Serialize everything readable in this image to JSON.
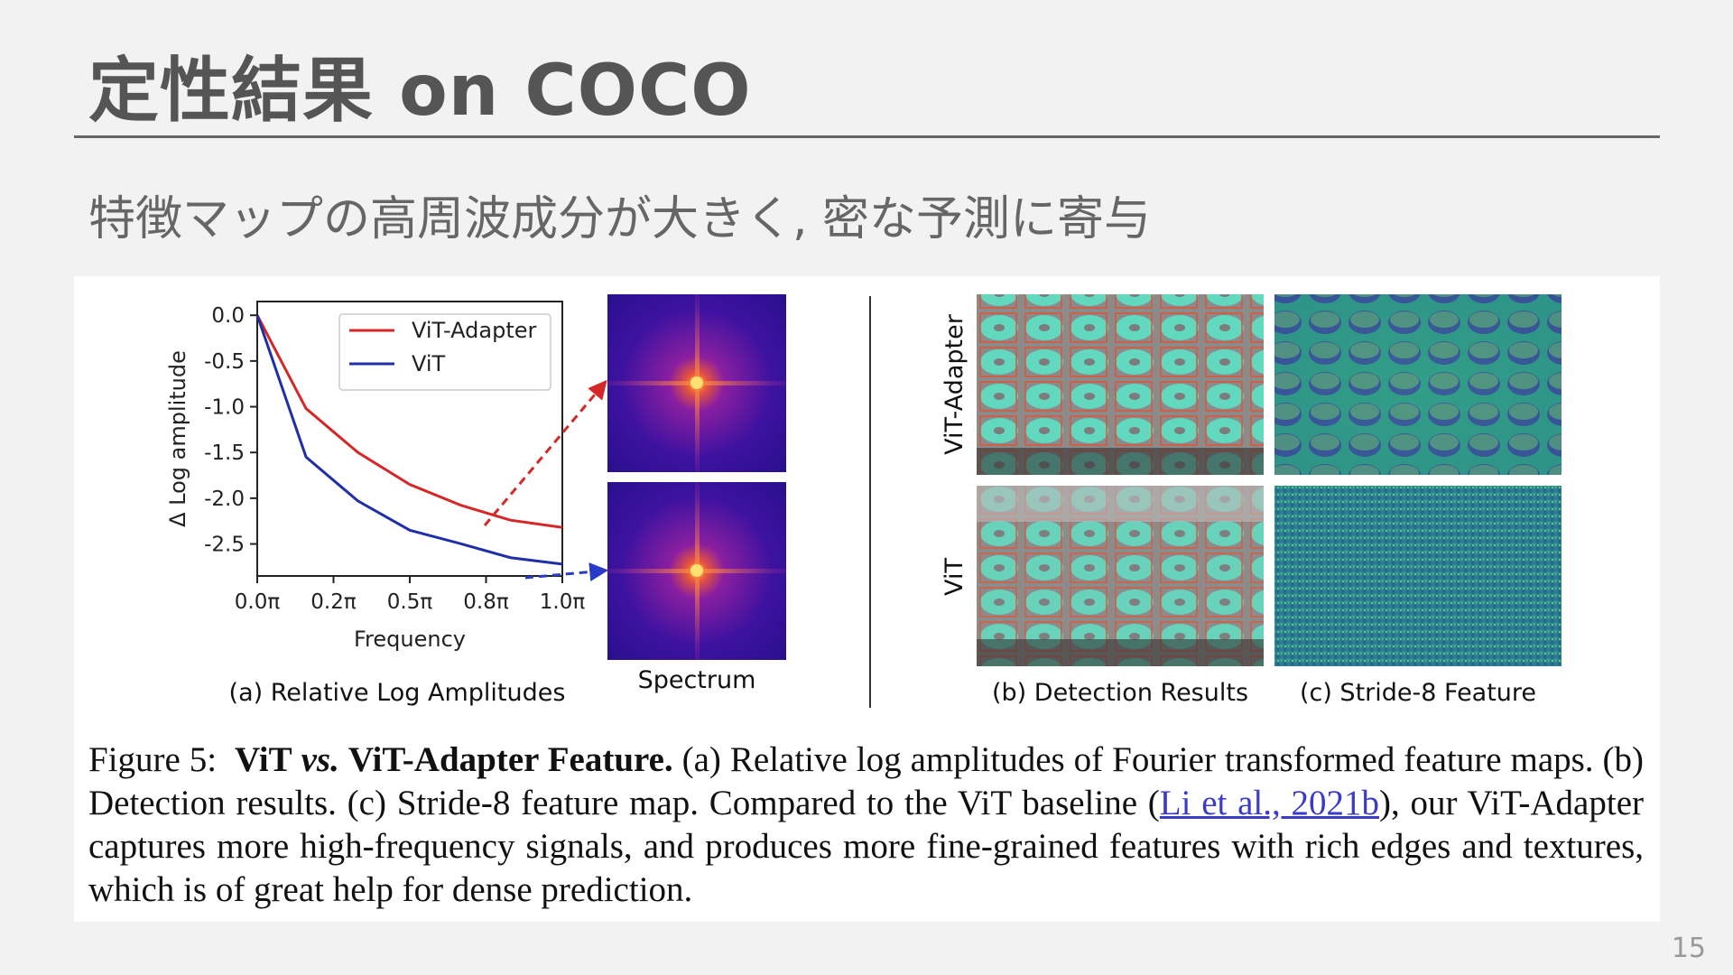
{
  "slide": {
    "title": "定性結果 on COCO",
    "subtitle": "特徴マップの高周波成分が大きく, 密な予測に寄与",
    "page_number": "15"
  },
  "figure": {
    "panel_a_caption": "(a) Relative Log Amplitudes",
    "spectrum_label": "Spectrum",
    "panel_b_caption": "(b) Detection Results",
    "panel_c_caption": "(c) Stride-8 Feature",
    "row_label_top": "ViT-Adapter",
    "row_label_bottom": "ViT"
  },
  "chart_data": {
    "type": "line",
    "xlabel": "Frequency",
    "ylabel": "Δ Log amplitude",
    "x": [
      0.0,
      0.16,
      0.33,
      0.5,
      0.67,
      0.83,
      1.0
    ],
    "x_ticks": [
      "0.0π",
      "0.2π",
      "0.5π",
      "0.8π",
      "1.0π"
    ],
    "x_tick_values": [
      0.0,
      0.25,
      0.5,
      0.75,
      1.0
    ],
    "y_ticks": [
      "0.0",
      "-0.5",
      "-1.0",
      "-1.5",
      "-2.0",
      "-2.5"
    ],
    "y_tick_values": [
      0.0,
      -0.5,
      -1.0,
      -1.5,
      -2.0,
      -2.5
    ],
    "ylim": [
      -2.85,
      0.15
    ],
    "xlim": [
      0.0,
      1.0
    ],
    "legend_position": "top-right",
    "series": [
      {
        "name": "ViT-Adapter",
        "color": "#d62728",
        "values": [
          0.0,
          -1.02,
          -1.5,
          -1.85,
          -2.08,
          -2.24,
          -2.32
        ]
      },
      {
        "name": "ViT",
        "color": "#1f2fa8",
        "values": [
          0.0,
          -1.55,
          -2.03,
          -2.35,
          -2.5,
          -2.65,
          -2.72
        ]
      }
    ]
  },
  "caption": {
    "lead": "Figure 5:",
    "bold1": "ViT",
    "italic": "vs.",
    "bold2": "ViT-Adapter Feature.",
    "text1": " (a) Relative log amplitudes of Fourier transformed feature maps.  (b) Detection results.  (c) Stride-8 feature map.  Compared to the ViT baseline (",
    "link": "Li et al., 2021b",
    "text2": "), our ViT-Adapter captures more high-frequency signals, and produces more fine-grained features with rich edges and textures, which is of great help for dense prediction."
  },
  "colors": {
    "background": "#f2f2f2",
    "link": "#3b3bc8",
    "vit_adapter_line": "#d62728",
    "vit_line": "#1f2fa8"
  }
}
